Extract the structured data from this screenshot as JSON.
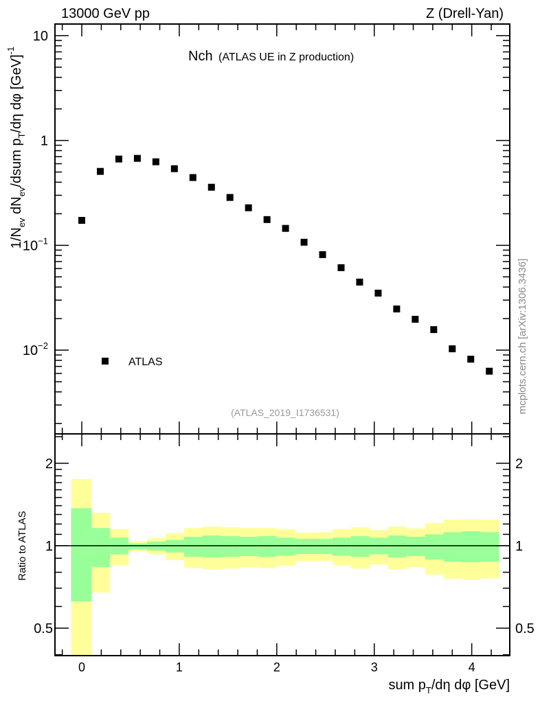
{
  "header": {
    "left": "13000 GeV pp",
    "right": "Z (Drell-Yan)"
  },
  "title": {
    "main": "Nch",
    "sub": "(ATLAS UE in Z production)"
  },
  "analysis_id": "(ATLAS_2019_I1736531)",
  "watermark": "mcplots.cern.ch [arXiv:1306.3436]",
  "colors": {
    "yellow_band": "#ffff99",
    "green_band": "#99ff99",
    "marker": "#000000"
  },
  "chart_data": [
    {
      "type": "scatter",
      "title": "Nch (ATLAS UE in Z production)",
      "ylabel_segments": [
        {
          "t": "1/N",
          "s": "n"
        },
        {
          "t": "ev",
          "s": "sub"
        },
        {
          "t": " dN",
          "s": "n"
        },
        {
          "t": "ev",
          "s": "sub"
        },
        {
          "t": "/dsum p",
          "s": "n"
        },
        {
          "t": "T",
          "s": "sub"
        },
        {
          "t": "/dη dφ  [GeV]",
          "s": "n"
        },
        {
          "t": "-1",
          "s": "sup"
        }
      ],
      "yscale": "log",
      "xlim": [
        -0.275,
        4.39
      ],
      "ylim": [
        0.00159,
        12.9
      ],
      "ytick_labels": [
        {
          "v": 10,
          "base": "10",
          "exp": ""
        },
        {
          "v": 1,
          "base": "1",
          "exp": ""
        },
        {
          "v": 0.1,
          "base": "10",
          "exp": "−1"
        },
        {
          "v": 0.01,
          "base": "10",
          "exp": "−2"
        }
      ],
      "legend": {
        "label": "ATLAS",
        "placement": "lower-left"
      },
      "series": [
        {
          "name": "ATLAS",
          "x": [
            0,
            0.19,
            0.38,
            0.57,
            0.76,
            0.95,
            1.14,
            1.33,
            1.52,
            1.71,
            1.9,
            2.09,
            2.28,
            2.47,
            2.66,
            2.85,
            3.04,
            3.23,
            3.42,
            3.61,
            3.8,
            3.99,
            4.18
          ],
          "y": [
            0.173,
            0.507,
            0.665,
            0.675,
            0.626,
            0.538,
            0.443,
            0.358,
            0.286,
            0.228,
            0.176,
            0.145,
            0.107,
            0.0815,
            0.0612,
            0.0446,
            0.035,
            0.0247,
            0.0197,
            0.0157,
            0.0103,
            0.0082,
            0.0063
          ]
        }
      ]
    },
    {
      "type": "area",
      "ylabel": "Ratio to ATLAS",
      "xlabel_segments": [
        {
          "t": "sum p",
          "s": "n"
        },
        {
          "t": "T",
          "s": "sub"
        },
        {
          "t": "/dη dφ [GeV]",
          "s": "n"
        }
      ],
      "yscale": "log",
      "xlim": [
        -0.275,
        4.39
      ],
      "ylim": [
        0.397,
        2.56
      ],
      "ytick_labels": [
        {
          "v": 2,
          "label": "2"
        },
        {
          "v": 1,
          "label": "1"
        },
        {
          "v": 0.5,
          "label": "0.5"
        }
      ],
      "xtick_labels": [
        {
          "v": 0,
          "label": "0"
        },
        {
          "v": 1,
          "label": "1"
        },
        {
          "v": 2,
          "label": "2"
        },
        {
          "v": 3,
          "label": "3"
        },
        {
          "v": 4,
          "label": "4"
        }
      ],
      "bin_edges": [
        -0.11,
        0.1,
        0.29,
        0.48,
        0.67,
        0.86,
        1.05,
        1.24,
        1.43,
        1.62,
        1.81,
        2.0,
        2.19,
        2.38,
        2.57,
        2.76,
        2.95,
        3.14,
        3.33,
        3.52,
        3.71,
        3.9,
        4.09,
        4.28
      ],
      "yellow_band": {
        "upper": [
          1.75,
          1.32,
          1.15,
          1.04,
          1.065,
          1.11,
          1.16,
          1.175,
          1.17,
          1.16,
          1.16,
          1.15,
          1.116,
          1.12,
          1.15,
          1.17,
          1.14,
          1.175,
          1.155,
          1.21,
          1.245,
          1.25,
          1.245
        ],
        "lower": [
          0.38,
          0.675,
          0.85,
          0.955,
          0.93,
          0.886,
          0.83,
          0.82,
          0.826,
          0.836,
          0.83,
          0.846,
          0.88,
          0.88,
          0.85,
          0.826,
          0.855,
          0.82,
          0.836,
          0.785,
          0.758,
          0.75,
          0.76
        ]
      },
      "green_band": {
        "upper": [
          1.37,
          1.16,
          1.07,
          1.02,
          1.035,
          1.05,
          1.078,
          1.09,
          1.084,
          1.078,
          1.084,
          1.07,
          1.06,
          1.06,
          1.07,
          1.084,
          1.07,
          1.09,
          1.078,
          1.1,
          1.12,
          1.13,
          1.12
        ],
        "lower": [
          0.626,
          0.836,
          0.93,
          0.97,
          0.96,
          0.944,
          0.912,
          0.906,
          0.91,
          0.917,
          0.91,
          0.92,
          0.933,
          0.933,
          0.92,
          0.91,
          0.93,
          0.906,
          0.917,
          0.89,
          0.875,
          0.87,
          0.875
        ]
      },
      "reference_line": 1
    }
  ]
}
